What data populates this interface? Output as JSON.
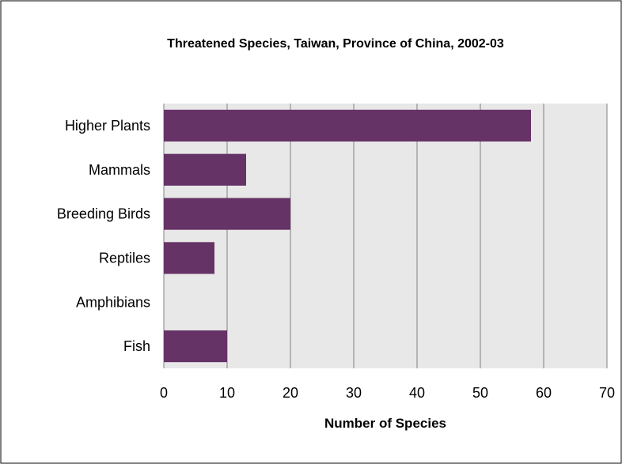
{
  "chart_data": {
    "type": "bar",
    "orientation": "horizontal",
    "title": "Threatened Species, Taiwan, Province of China, 2002-03",
    "xlabel": "Number of Species",
    "ylabel": "",
    "categories": [
      "Higher Plants",
      "Mammals",
      "Breeding Birds",
      "Reptiles",
      "Amphibians",
      "Fish"
    ],
    "values": [
      58,
      13,
      20,
      8,
      0,
      10
    ],
    "xlim": [
      0,
      70
    ],
    "xticks": [
      "0",
      "10",
      "20",
      "30",
      "40",
      "50",
      "60",
      "70"
    ],
    "grid": "vertical",
    "legend": "none",
    "colors": {
      "bar": "#663366",
      "plot_background": "#e8e8e8",
      "gridline": "#808080",
      "border": "#000000"
    }
  }
}
